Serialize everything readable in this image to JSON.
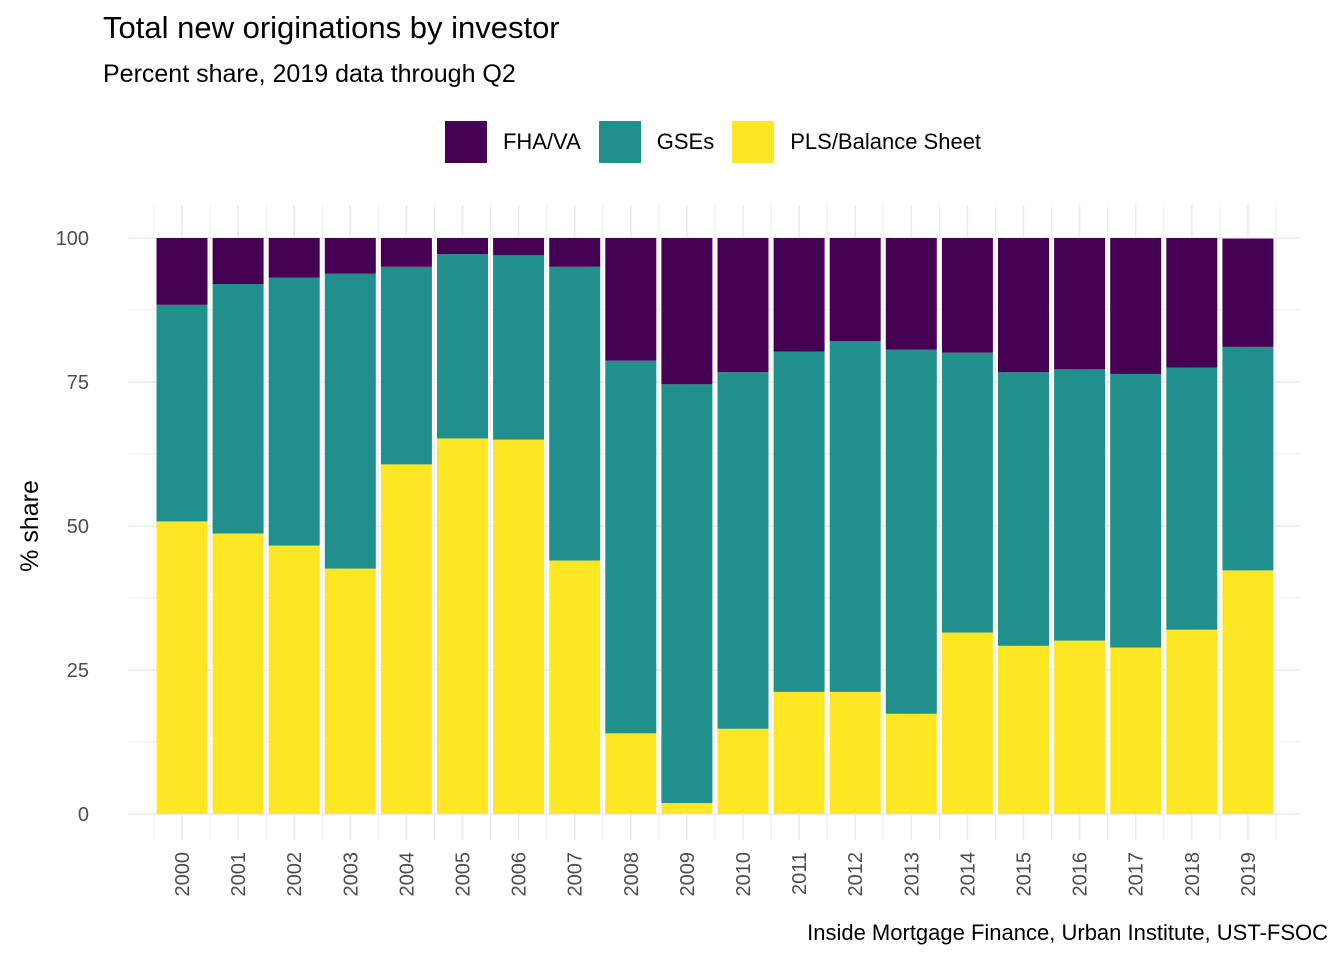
{
  "chart_data": {
    "type": "bar",
    "stacked": true,
    "title": "Total new originations by investor",
    "subtitle": "Percent share, 2019 data through Q2",
    "ylabel": "% share",
    "xlabel": "",
    "caption": "Inside Mortgage Finance, Urban Institute, UST-FSOC",
    "ylim": [
      0,
      100
    ],
    "yticks": [
      0,
      25,
      50,
      75,
      100
    ],
    "legend_position": "top",
    "grid": true,
    "categories": [
      "2000",
      "2001",
      "2002",
      "2003",
      "2004",
      "2005",
      "2006",
      "2007",
      "2008",
      "2009",
      "2010",
      "2011",
      "2012",
      "2013",
      "2014",
      "2015",
      "2016",
      "2017",
      "2018",
      "2019"
    ],
    "series": [
      {
        "name": "PLS/Balance Sheet",
        "color": "#FDE725",
        "values": [
          50.8,
          48.7,
          46.6,
          42.6,
          60.7,
          65.2,
          65.0,
          44.0,
          14.0,
          1.9,
          14.8,
          21.2,
          21.2,
          17.4,
          31.5,
          29.2,
          30.1,
          28.9,
          32.0,
          42.3
        ]
      },
      {
        "name": "GSEs",
        "color": "#21908C",
        "values": [
          37.6,
          43.3,
          46.5,
          51.2,
          34.3,
          32.0,
          32.0,
          51.0,
          64.7,
          72.7,
          61.9,
          59.1,
          60.9,
          63.2,
          48.6,
          47.5,
          47.1,
          47.5,
          45.5,
          38.8
        ]
      },
      {
        "name": "FHA/VA",
        "color": "#440154",
        "values": [
          11.6,
          8.0,
          6.9,
          6.2,
          5.0,
          2.8,
          3.0,
          5.0,
          21.3,
          25.4,
          23.3,
          19.7,
          17.9,
          19.4,
          19.9,
          23.3,
          22.8,
          23.6,
          22.5,
          18.8
        ]
      }
    ]
  },
  "legend": {
    "items": [
      {
        "label": "FHA/VA",
        "color": "#440154"
      },
      {
        "label": "GSEs",
        "color": "#21908C"
      },
      {
        "label": "PLS/Balance Sheet",
        "color": "#FDE725"
      }
    ]
  }
}
